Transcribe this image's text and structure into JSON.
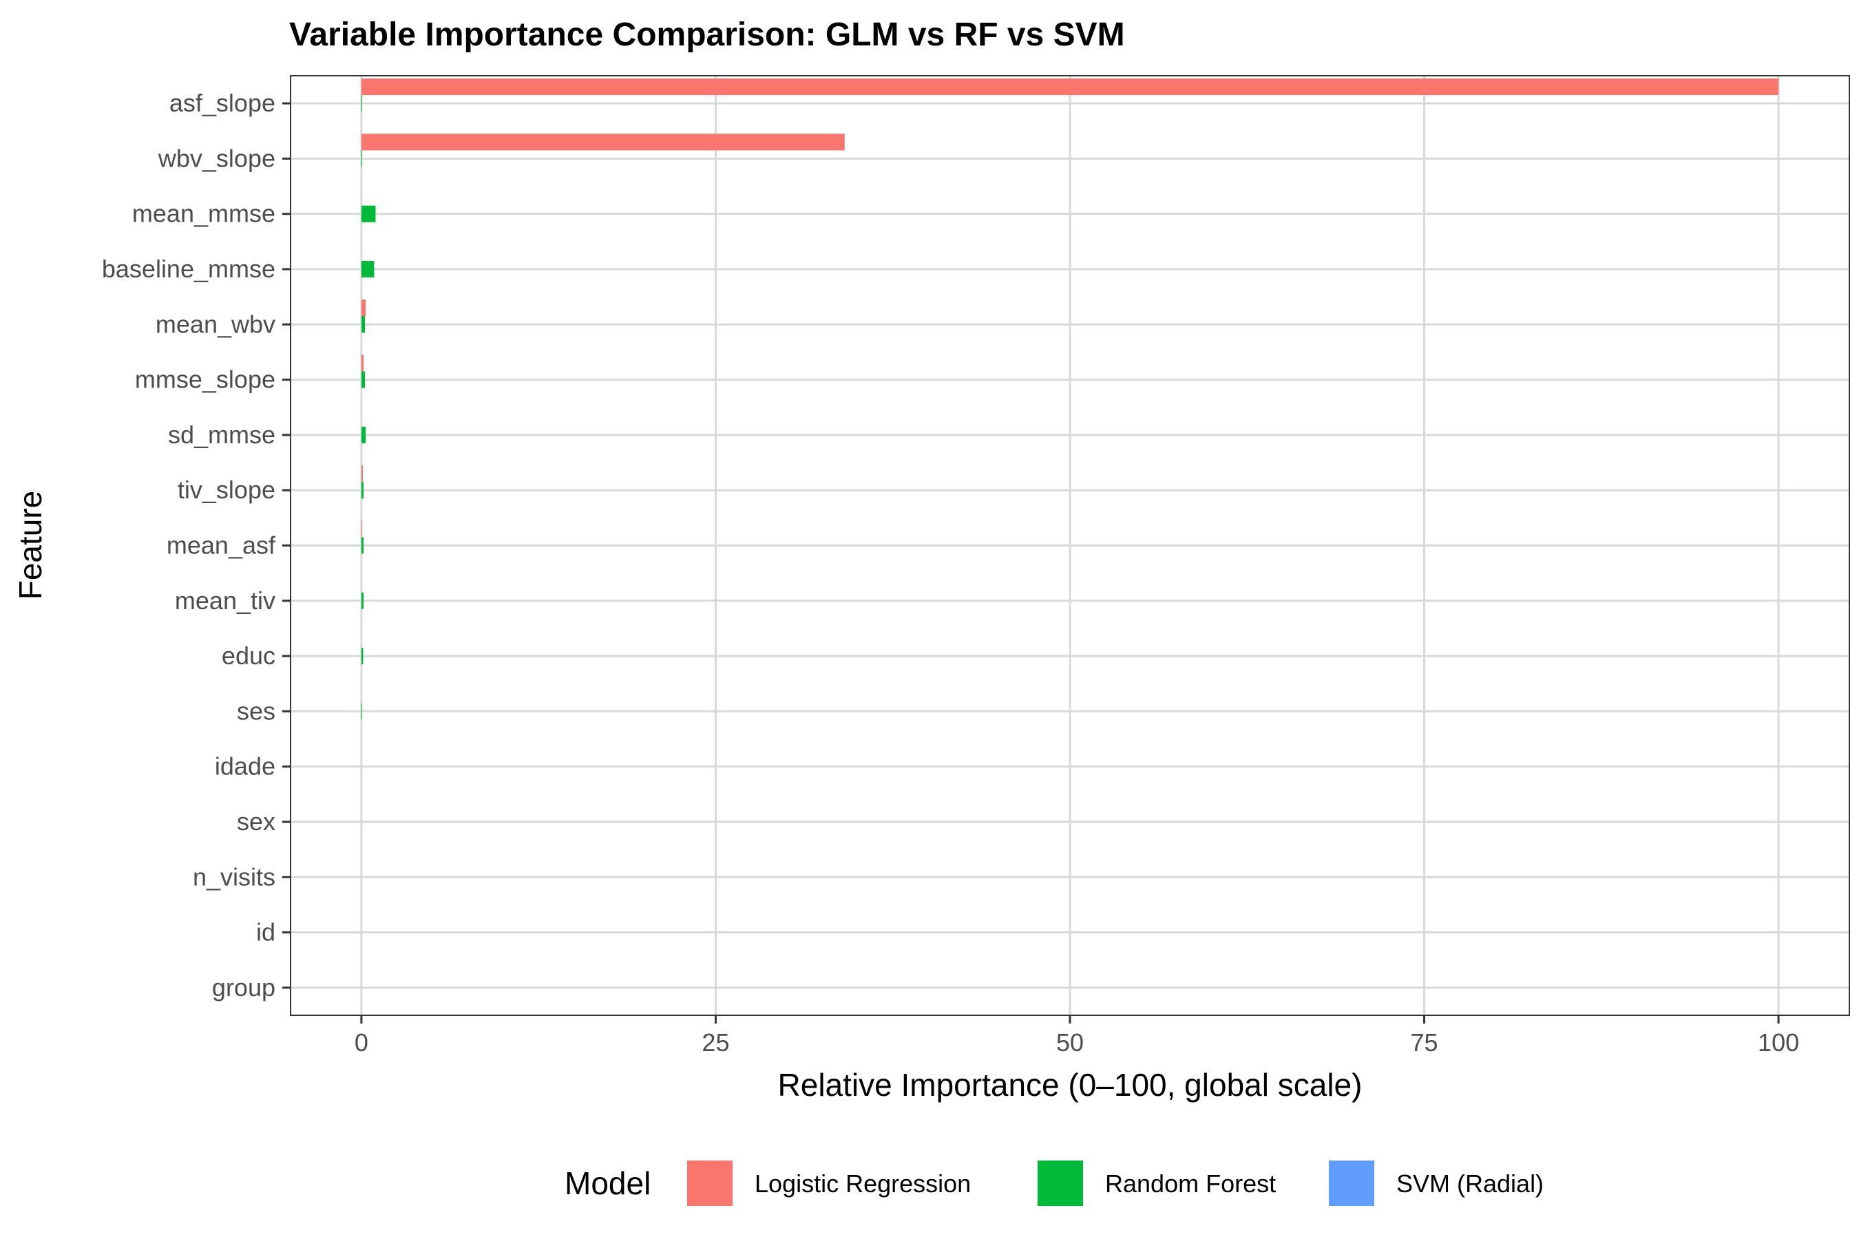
{
  "chart_data": {
    "type": "bar",
    "orientation": "horizontal",
    "title": "Variable Importance Comparison: GLM vs RF vs SVM",
    "xlabel": "Relative Importance (0–100, global scale)",
    "ylabel": "Feature",
    "xlim": [
      -5,
      105
    ],
    "xticks": [
      0,
      25,
      50,
      75,
      100
    ],
    "grid": true,
    "legend_position": "bottom",
    "legend_title": "Model",
    "categories": [
      "asf_slope",
      "wbv_slope",
      "mean_mmse",
      "baseline_mmse",
      "mean_wbv",
      "mmse_slope",
      "sd_mmse",
      "tiv_slope",
      "mean_asf",
      "mean_tiv",
      "educ",
      "ses",
      "idade",
      "sex",
      "n_visits",
      "id",
      "group"
    ],
    "series": [
      {
        "name": "Logistic Regression",
        "color": "#F8766D",
        "values": [
          100,
          34.1,
          0,
          0,
          0.3,
          0.15,
          0,
          0.1,
          0.05,
          0,
          0,
          0,
          0,
          0,
          0,
          0,
          0
        ]
      },
      {
        "name": "Random Forest",
        "color": "#00BA38",
        "values": [
          0.05,
          0.05,
          1.0,
          0.9,
          0.25,
          0.25,
          0.3,
          0.15,
          0.15,
          0.15,
          0.12,
          0.05,
          0,
          0,
          0,
          0,
          0
        ]
      },
      {
        "name": "SVM (Radial)",
        "color": "#619CFF",
        "values": [
          0,
          0,
          0,
          0,
          0,
          0,
          0,
          0,
          0,
          0,
          0,
          0,
          0,
          0,
          0,
          0,
          0
        ]
      }
    ]
  }
}
